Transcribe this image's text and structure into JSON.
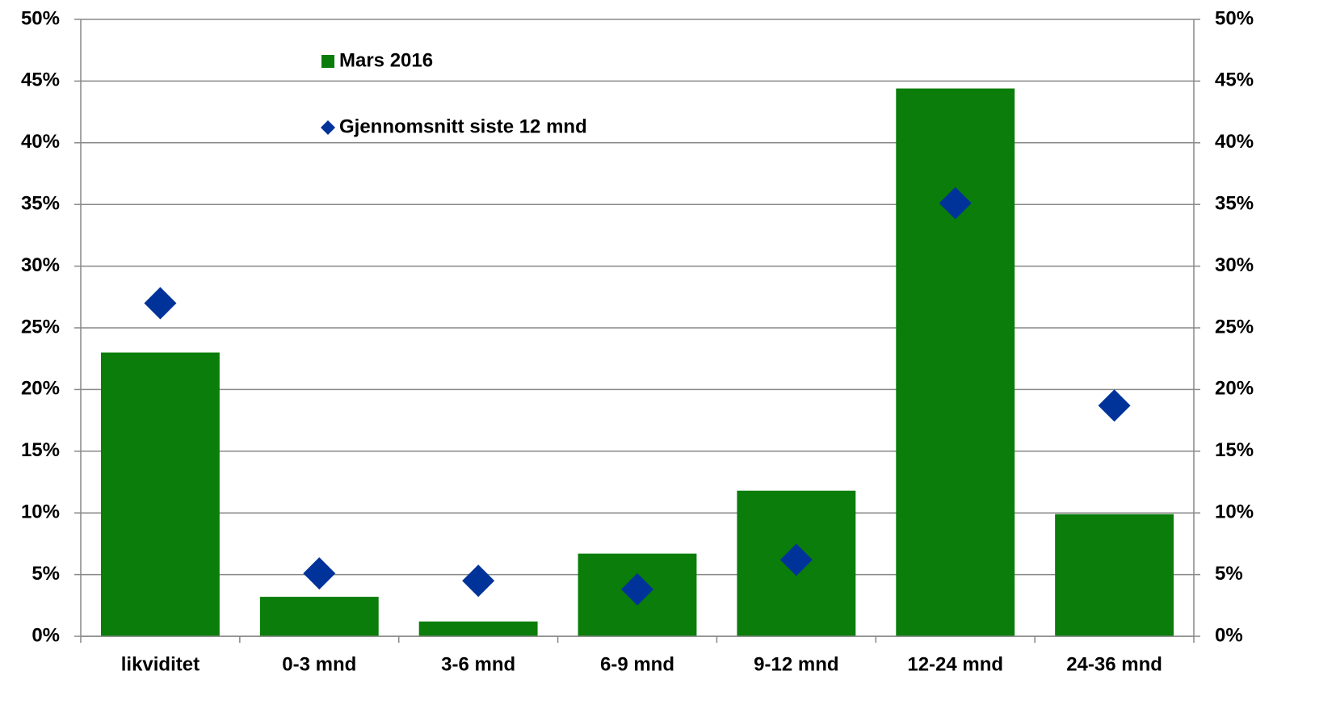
{
  "chart_data": {
    "type": "bar",
    "categories": [
      "likviditet",
      "0-3 mnd",
      "3-6 mnd",
      "6-9 mnd",
      "9-12 mnd",
      "12-24 mnd",
      "24-36 mnd"
    ],
    "series": [
      {
        "name": "Mars 2016",
        "type": "bar",
        "color": "#0a7d0a",
        "values": [
          23,
          3.2,
          1.2,
          6.7,
          11.8,
          44.4,
          9.9
        ]
      },
      {
        "name": "Gjennomsnitt siste 12 mnd",
        "type": "scatter",
        "marker": "diamond",
        "axis": "y2",
        "color": "#003399",
        "values": [
          27,
          5.1,
          4.5,
          3.8,
          6.2,
          35.1,
          18.7
        ]
      }
    ],
    "ylim": [
      0,
      50
    ],
    "yticks": [
      {
        "value": 0,
        "label": "0%"
      },
      {
        "value": 5,
        "label": "5%"
      },
      {
        "value": 10,
        "label": "10%"
      },
      {
        "value": 15,
        "label": "15%"
      },
      {
        "value": 20,
        "label": "20%"
      },
      {
        "value": 25,
        "label": "25%"
      },
      {
        "value": 30,
        "label": "30%"
      },
      {
        "value": 35,
        "label": "35%"
      },
      {
        "value": 40,
        "label": "40%"
      },
      {
        "value": 45,
        "label": "45%"
      },
      {
        "value": 50,
        "label": "50%"
      }
    ],
    "y2lim": [
      0,
      50
    ],
    "y2ticks": [
      {
        "value": 0,
        "label": "0%"
      },
      {
        "value": 5,
        "label": "5%"
      },
      {
        "value": 10,
        "label": "10%"
      },
      {
        "value": 15,
        "label": "15%"
      },
      {
        "value": 20,
        "label": "20%"
      },
      {
        "value": 25,
        "label": "25%"
      },
      {
        "value": 30,
        "label": "30%"
      },
      {
        "value": 35,
        "label": "35%"
      },
      {
        "value": 40,
        "label": "40%"
      },
      {
        "value": 45,
        "label": "45%"
      },
      {
        "value": 50,
        "label": "50%"
      }
    ],
    "grid": true
  }
}
